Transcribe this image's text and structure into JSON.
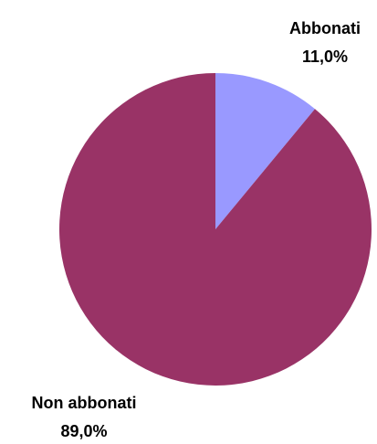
{
  "chart_data": {
    "type": "pie",
    "title": "",
    "slices": [
      {
        "label": "Abbonati",
        "value": 11.0,
        "value_label": "11,0%",
        "color": "#9999FF"
      },
      {
        "label": "Non abbonati",
        "value": 89.0,
        "value_label": "89,0%",
        "color": "#993366"
      }
    ],
    "start_angle_deg": 0,
    "direction": "clockwise",
    "legend": "none"
  }
}
